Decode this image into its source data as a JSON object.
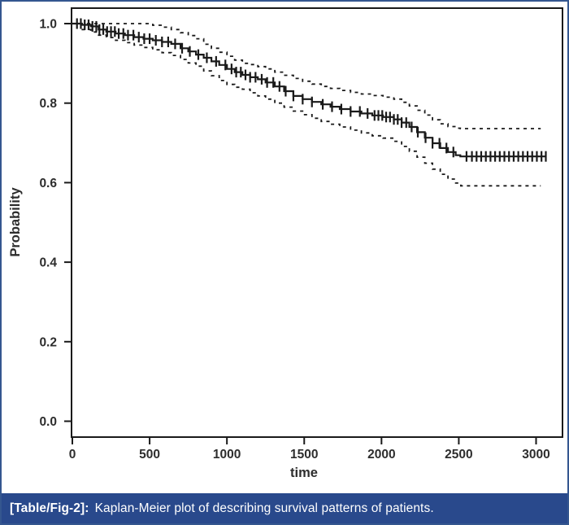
{
  "figure": {
    "caption": {
      "label": "[Table/Fig-2]:",
      "text": "Kaplan-Meier plot of describing survival patterns of patients."
    }
  },
  "colors": {
    "frame_border_blue": "#34568f",
    "caption_background_blue": "#29498c",
    "caption_text": "#ffffff",
    "curve_ink": "#1a1a1a",
    "axis_text": "#2d2d2d",
    "plot_background": "#ffffff"
  },
  "chart_data": {
    "type": "line",
    "subtype": "kaplan-meier-step",
    "title": "",
    "xlabel": "time",
    "ylabel": "Probability",
    "xlim": [
      0,
      3063
    ],
    "ylim": [
      0.0,
      1.0
    ],
    "x_ticks": [
      0,
      500,
      1000,
      1500,
      2000,
      2500,
      3000
    ],
    "y_ticks": [
      1.0,
      0.8,
      0.6,
      0.4,
      0.2,
      0.0
    ],
    "grid": false,
    "legend": "none",
    "series": [
      {
        "name": "survival-estimate",
        "style": "solid",
        "step": true,
        "points": [
          [
            0,
            1.0
          ],
          [
            60,
            0.997
          ],
          [
            120,
            0.993
          ],
          [
            170,
            0.985
          ],
          [
            220,
            0.98
          ],
          [
            280,
            0.975
          ],
          [
            340,
            0.971
          ],
          [
            400,
            0.966
          ],
          [
            460,
            0.962
          ],
          [
            520,
            0.958
          ],
          [
            580,
            0.954
          ],
          [
            640,
            0.949
          ],
          [
            700,
            0.938
          ],
          [
            750,
            0.93
          ],
          [
            800,
            0.922
          ],
          [
            850,
            0.914
          ],
          [
            900,
            0.905
          ],
          [
            950,
            0.896
          ],
          [
            1000,
            0.886
          ],
          [
            1050,
            0.878
          ],
          [
            1100,
            0.871
          ],
          [
            1150,
            0.865
          ],
          [
            1200,
            0.86
          ],
          [
            1250,
            0.852
          ],
          [
            1310,
            0.842
          ],
          [
            1370,
            0.83
          ],
          [
            1430,
            0.818
          ],
          [
            1490,
            0.81
          ],
          [
            1550,
            0.803
          ],
          [
            1610,
            0.797
          ],
          [
            1670,
            0.791
          ],
          [
            1730,
            0.785
          ],
          [
            1800,
            0.779
          ],
          [
            1870,
            0.774
          ],
          [
            1940,
            0.769
          ],
          [
            2010,
            0.765
          ],
          [
            2080,
            0.759
          ],
          [
            2130,
            0.751
          ],
          [
            2180,
            0.74
          ],
          [
            2230,
            0.727
          ],
          [
            2280,
            0.713
          ],
          [
            2330,
            0.699
          ],
          [
            2380,
            0.687
          ],
          [
            2430,
            0.677
          ],
          [
            2480,
            0.669
          ],
          [
            2510,
            0.666
          ],
          [
            3063,
            0.666
          ]
        ]
      },
      {
        "name": "upper-confidence-bound",
        "style": "dashed",
        "step": true,
        "points": [
          [
            0,
            1.0
          ],
          [
            430,
            1.0
          ],
          [
            520,
            0.996
          ],
          [
            580,
            0.991
          ],
          [
            640,
            0.985
          ],
          [
            700,
            0.977
          ],
          [
            750,
            0.97
          ],
          [
            800,
            0.962
          ],
          [
            850,
            0.948
          ],
          [
            900,
            0.938
          ],
          [
            950,
            0.928
          ],
          [
            1000,
            0.918
          ],
          [
            1050,
            0.908
          ],
          [
            1100,
            0.9
          ],
          [
            1150,
            0.897
          ],
          [
            1200,
            0.892
          ],
          [
            1250,
            0.886
          ],
          [
            1310,
            0.878
          ],
          [
            1370,
            0.87
          ],
          [
            1430,
            0.862
          ],
          [
            1490,
            0.855
          ],
          [
            1550,
            0.848
          ],
          [
            1610,
            0.842
          ],
          [
            1670,
            0.837
          ],
          [
            1730,
            0.832
          ],
          [
            1800,
            0.827
          ],
          [
            1870,
            0.823
          ],
          [
            1940,
            0.819
          ],
          [
            2010,
            0.815
          ],
          [
            2080,
            0.81
          ],
          [
            2130,
            0.802
          ],
          [
            2180,
            0.793
          ],
          [
            2230,
            0.782
          ],
          [
            2280,
            0.77
          ],
          [
            2330,
            0.758
          ],
          [
            2380,
            0.748
          ],
          [
            2430,
            0.741
          ],
          [
            2480,
            0.737
          ],
          [
            2510,
            0.736
          ],
          [
            3030,
            0.736
          ]
        ]
      },
      {
        "name": "lower-confidence-bound",
        "style": "dashed",
        "step": true,
        "points": [
          [
            60,
            0.985
          ],
          [
            120,
            0.979
          ],
          [
            170,
            0.971
          ],
          [
            220,
            0.965
          ],
          [
            280,
            0.958
          ],
          [
            340,
            0.952
          ],
          [
            400,
            0.946
          ],
          [
            460,
            0.94
          ],
          [
            520,
            0.934
          ],
          [
            580,
            0.927
          ],
          [
            640,
            0.92
          ],
          [
            700,
            0.91
          ],
          [
            750,
            0.901
          ],
          [
            800,
            0.893
          ],
          [
            850,
            0.881
          ],
          [
            900,
            0.869
          ],
          [
            950,
            0.857
          ],
          [
            1000,
            0.847
          ],
          [
            1050,
            0.84
          ],
          [
            1100,
            0.835
          ],
          [
            1150,
            0.826
          ],
          [
            1200,
            0.818
          ],
          [
            1250,
            0.81
          ],
          [
            1310,
            0.8
          ],
          [
            1370,
            0.79
          ],
          [
            1430,
            0.78
          ],
          [
            1490,
            0.771
          ],
          [
            1550,
            0.762
          ],
          [
            1610,
            0.754
          ],
          [
            1670,
            0.747
          ],
          [
            1730,
            0.74
          ],
          [
            1800,
            0.732
          ],
          [
            1870,
            0.725
          ],
          [
            1940,
            0.718
          ],
          [
            2010,
            0.712
          ],
          [
            2080,
            0.704
          ],
          [
            2130,
            0.691
          ],
          [
            2180,
            0.679
          ],
          [
            2230,
            0.664
          ],
          [
            2280,
            0.649
          ],
          [
            2330,
            0.634
          ],
          [
            2380,
            0.621
          ],
          [
            2430,
            0.609
          ],
          [
            2480,
            0.599
          ],
          [
            2513,
            0.592
          ],
          [
            3030,
            0.592
          ]
        ]
      }
    ],
    "censor_times": [
      30,
      55,
      80,
      105,
      130,
      155,
      175,
      200,
      225,
      250,
      275,
      300,
      330,
      360,
      395,
      430,
      465,
      500,
      540,
      580,
      620,
      665,
      710,
      760,
      815,
      870,
      930,
      990,
      1030,
      1060,
      1090,
      1120,
      1150,
      1185,
      1225,
      1260,
      1300,
      1340,
      1380,
      1430,
      1490,
      1550,
      1620,
      1680,
      1740,
      1800,
      1860,
      1910,
      1955,
      1980,
      2005,
      2030,
      2055,
      2080,
      2105,
      2130,
      2160,
      2195,
      2235,
      2285,
      2330,
      2375,
      2420,
      2465,
      2550,
      2585,
      2615,
      2645,
      2675,
      2705,
      2735,
      2765,
      2795,
      2825,
      2855,
      2885,
      2915,
      2945,
      2975,
      3005,
      3035,
      3063
    ]
  }
}
